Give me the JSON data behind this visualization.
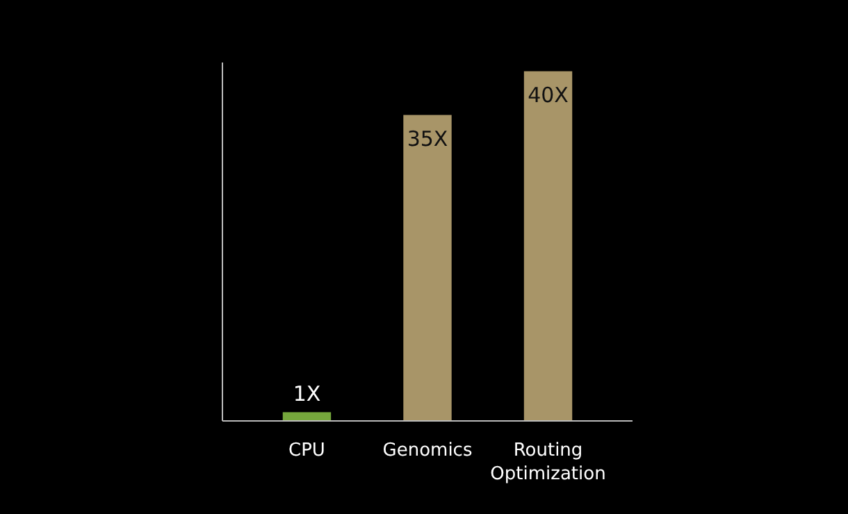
{
  "chart_data": {
    "type": "bar",
    "categories": [
      "CPU",
      "Genomics",
      "Routing Optimization"
    ],
    "values": [
      1,
      35,
      40
    ],
    "colors": [
      "#76a83c",
      "#a89568",
      "#a89568"
    ],
    "value_labels": [
      "1X",
      "35X",
      "40X"
    ],
    "ylim": [
      0,
      41
    ],
    "tick_labels": "x"
  }
}
